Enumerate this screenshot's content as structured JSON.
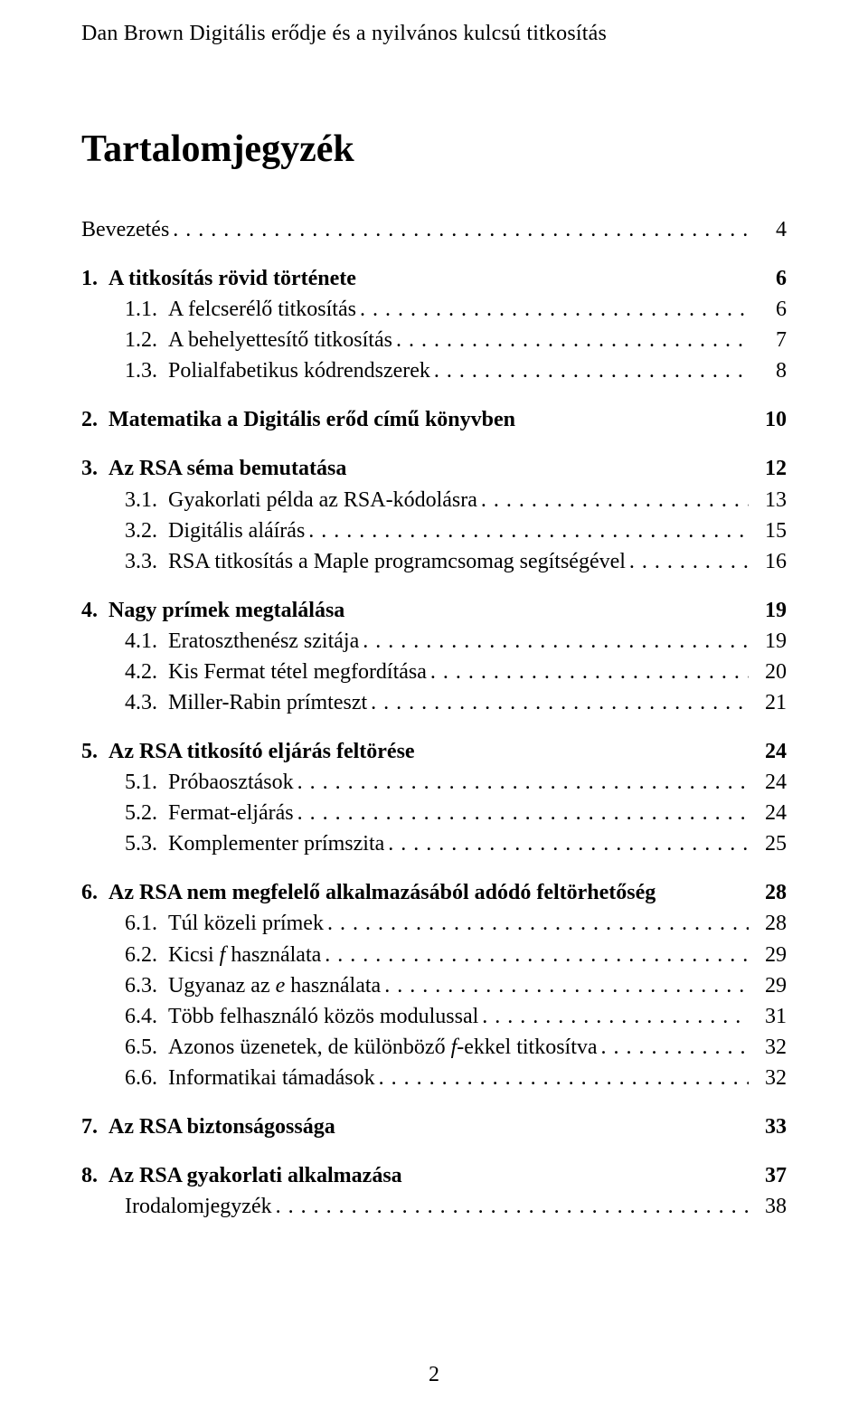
{
  "header": "Dan Brown Digitális erődje és a nyilvános kulcsú titkosítás",
  "title": "Tartalomjegyzék",
  "page_number": "2",
  "sections": [
    {
      "top": {
        "num": "",
        "label": "Bevezetés",
        "page": "4",
        "bold": false,
        "dots": true
      },
      "subs": []
    },
    {
      "top": {
        "num": "1.",
        "label": "A titkosítás rövid története",
        "page": "6",
        "bold": true,
        "dots": false
      },
      "subs": [
        {
          "num": "1.1.",
          "label": "A felcserélő titkosítás",
          "page": "6",
          "dots": true
        },
        {
          "num": "1.2.",
          "label": "A behelyettesítő titkosítás",
          "page": "7",
          "dots": true
        },
        {
          "num": "1.3.",
          "label": "Polialfabetikus kódrendszerek",
          "page": "8",
          "dots": true
        }
      ]
    },
    {
      "top": {
        "num": "2.",
        "label": "Matematika a Digitális erőd című könyvben",
        "page": "10",
        "bold": true,
        "dots": false
      },
      "subs": []
    },
    {
      "top": {
        "num": "3.",
        "label": "Az RSA séma bemutatása",
        "page": "12",
        "bold": true,
        "dots": false
      },
      "subs": [
        {
          "num": "3.1.",
          "label": "Gyakorlati példa az RSA-kódolásra",
          "page": "13",
          "dots": true
        },
        {
          "num": "3.2.",
          "label": "Digitális aláírás",
          "page": "15",
          "dots": true
        },
        {
          "num": "3.3.",
          "label": "RSA titkosítás a Maple programcsomag segítségével",
          "page": "16",
          "dots": true
        }
      ]
    },
    {
      "top": {
        "num": "4.",
        "label": "Nagy prímek megtalálása",
        "page": "19",
        "bold": true,
        "dots": false
      },
      "subs": [
        {
          "num": "4.1.",
          "label": "Eratoszthenész szitája",
          "page": "19",
          "dots": true
        },
        {
          "num": "4.2.",
          "label": "Kis Fermat tétel megfordítása",
          "page": "20",
          "dots": true
        },
        {
          "num": "4.3.",
          "label": "Miller-Rabin prímteszt",
          "page": "21",
          "dots": true
        }
      ]
    },
    {
      "top": {
        "num": "5.",
        "label": "Az RSA titkosító eljárás feltörése",
        "page": "24",
        "bold": true,
        "dots": false
      },
      "subs": [
        {
          "num": "5.1.",
          "label": "Próbaosztások",
          "page": "24",
          "dots": true
        },
        {
          "num": "5.2.",
          "label": "Fermat-eljárás",
          "page": "24",
          "dots": true
        },
        {
          "num": "5.3.",
          "label": "Komplementer prímszita",
          "page": "25",
          "dots": true
        }
      ]
    },
    {
      "top": {
        "num": "6.",
        "label": "Az RSA nem megfelelő alkalmazásából adódó feltörhetőség",
        "page": "28",
        "bold": true,
        "dots": false
      },
      "subs": [
        {
          "num": "6.1.",
          "label": "Túl közeli prímek",
          "page": "28",
          "dots": true
        },
        {
          "num": "6.2.",
          "label_html": "Kicsi <span class=\"italic\">f</span> használata",
          "page": "29",
          "dots": true
        },
        {
          "num": "6.3.",
          "label_html": "Ugyanaz az <span class=\"italic\">e</span> használata",
          "page": "29",
          "dots": true
        },
        {
          "num": "6.4.",
          "label": "Több felhasználó közös modulussal",
          "page": "31",
          "dots": true
        },
        {
          "num": "6.5.",
          "label_html": "Azonos üzenetek, de különböző <span class=\"italic\">f</span>-ekkel titkosítva",
          "page": "32",
          "dots": true
        },
        {
          "num": "6.6.",
          "label": "Informatikai támadások",
          "page": "32",
          "dots": true
        }
      ]
    },
    {
      "top": {
        "num": "7.",
        "label": "Az RSA biztonságossága",
        "page": "33",
        "bold": true,
        "dots": false
      },
      "subs": []
    },
    {
      "top": {
        "num": "8.",
        "label": "Az RSA gyakorlati alkalmazása",
        "page": "37",
        "bold": true,
        "dots": false
      },
      "subs": [
        {
          "num": "",
          "label": "Irodalomjegyzék",
          "page": "38",
          "dots": true
        }
      ]
    }
  ]
}
